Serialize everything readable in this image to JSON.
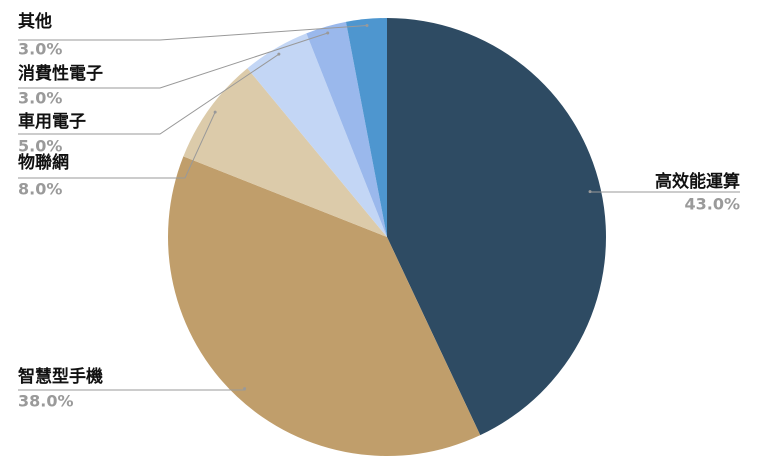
{
  "chart_data": {
    "type": "pie",
    "categories": [
      "高效能運算",
      "智慧型手機",
      "物聯網",
      "車用電子",
      "消費性電子",
      "其他"
    ],
    "values": [
      43,
      38,
      8,
      5,
      3,
      3
    ],
    "value_labels": [
      "43.0%",
      "38.0%",
      "8.0%",
      "5.0%",
      "3.0%",
      "3.0%"
    ],
    "colors": [
      "#2e4b63",
      "#c09e6b",
      "#dccbaa",
      "#c3d6f5",
      "#9ab8ec",
      "#4e96cf"
    ]
  }
}
